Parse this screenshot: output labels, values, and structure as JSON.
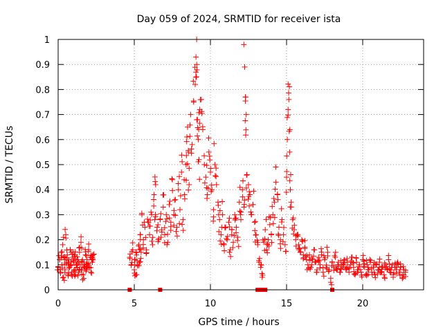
{
  "chart_data": {
    "type": "scatter",
    "title": "Day 059 of 2024, SRMTID for receiver ista",
    "xlabel": "GPS time / hours",
    "ylabel": "SRMTID / TECUs",
    "xlim": [
      0,
      24
    ],
    "ylim": [
      0,
      1
    ],
    "xticks": [
      0,
      5,
      10,
      15,
      20
    ],
    "yticks": [
      0,
      0.1,
      0.2,
      0.3,
      0.4,
      0.5,
      0.6,
      0.7,
      0.8,
      0.9,
      1
    ],
    "ytick_labels": [
      "0",
      "0.1",
      "0.2",
      "0.3",
      "0.4",
      "0.5",
      "0.6",
      "0.7",
      "0.8",
      "0.9",
      "1"
    ],
    "grid": true,
    "marker": "plus",
    "color": "#ff0000",
    "series": [
      {
        "name": "SRMTID",
        "points": [
          [
            0.0,
            0.09
          ],
          [
            0.1,
            0.12
          ],
          [
            0.15,
            0.07
          ],
          [
            0.2,
            0.15
          ],
          [
            0.25,
            0.1
          ],
          [
            0.3,
            0.18
          ],
          [
            0.35,
            0.05
          ],
          [
            0.4,
            0.13
          ],
          [
            0.45,
            0.08
          ],
          [
            0.5,
            0.22
          ],
          [
            0.55,
            0.11
          ],
          [
            0.6,
            0.14
          ],
          [
            0.65,
            0.06
          ],
          [
            0.7,
            0.12
          ],
          [
            0.75,
            0.09
          ],
          [
            0.8,
            0.16
          ],
          [
            0.85,
            0.1
          ],
          [
            0.9,
            0.07
          ],
          [
            0.95,
            0.13
          ],
          [
            1.0,
            0.11
          ],
          [
            1.05,
            0.08
          ],
          [
            1.1,
            0.14
          ],
          [
            1.15,
            0.06
          ],
          [
            1.2,
            0.1
          ],
          [
            1.25,
            0.09
          ],
          [
            1.3,
            0.12
          ],
          [
            1.35,
            0.07
          ],
          [
            1.4,
            0.15
          ],
          [
            1.45,
            0.1
          ],
          [
            1.5,
            0.19
          ],
          [
            1.55,
            0.08
          ],
          [
            1.6,
            0.12
          ],
          [
            1.65,
            0.06
          ],
          [
            1.7,
            0.11
          ],
          [
            1.75,
            0.09
          ],
          [
            1.8,
            0.14
          ],
          [
            1.85,
            0.08
          ],
          [
            1.9,
            0.12
          ],
          [
            1.95,
            0.1
          ],
          [
            2.0,
            0.16
          ],
          [
            2.05,
            0.09
          ],
          [
            2.1,
            0.13
          ],
          [
            2.15,
            0.07
          ],
          [
            2.2,
            0.12
          ],
          [
            2.25,
            0.11
          ],
          [
            2.3,
            0.14
          ],
          [
            4.7,
            0.13
          ],
          [
            4.8,
            0.1
          ],
          [
            4.9,
            0.16
          ],
          [
            5.0,
            0.08
          ],
          [
            5.05,
            0.12
          ],
          [
            5.1,
            0.06
          ],
          [
            5.15,
            0.14
          ],
          [
            5.2,
            0.1
          ],
          [
            5.3,
            0.18
          ],
          [
            5.35,
            0.11
          ],
          [
            5.4,
            0.22
          ],
          [
            5.45,
            0.15
          ],
          [
            5.5,
            0.3
          ],
          [
            5.6,
            0.2
          ],
          [
            5.7,
            0.25
          ],
          [
            5.8,
            0.16
          ],
          [
            5.9,
            0.27
          ],
          [
            6.0,
            0.22
          ],
          [
            6.1,
            0.31
          ],
          [
            6.2,
            0.18
          ],
          [
            6.3,
            0.38
          ],
          [
            6.35,
            0.28
          ],
          [
            6.4,
            0.42
          ],
          [
            6.5,
            0.25
          ],
          [
            6.6,
            0.2
          ],
          [
            6.7,
            0.28
          ],
          [
            6.8,
            0.24
          ],
          [
            6.9,
            0.33
          ],
          [
            7.0,
            0.22
          ],
          [
            7.1,
            0.3
          ],
          [
            7.2,
            0.19
          ],
          [
            7.3,
            0.34
          ],
          [
            7.4,
            0.27
          ],
          [
            7.5,
            0.44
          ],
          [
            7.6,
            0.3
          ],
          [
            7.7,
            0.36
          ],
          [
            7.8,
            0.25
          ],
          [
            7.9,
            0.4
          ],
          [
            8.0,
            0.32
          ],
          [
            8.1,
            0.47
          ],
          [
            8.2,
            0.28
          ],
          [
            8.3,
            0.38
          ],
          [
            8.4,
            0.5
          ],
          [
            8.5,
            0.65
          ],
          [
            8.55,
            0.55
          ],
          [
            8.6,
            0.42
          ],
          [
            8.7,
            0.7
          ],
          [
            8.8,
            0.58
          ],
          [
            8.9,
            0.75
          ],
          [
            9.0,
            0.82
          ],
          [
            9.05,
            0.93
          ],
          [
            9.1,
            0.9
          ],
          [
            9.15,
            0.68
          ],
          [
            9.2,
            0.6
          ],
          [
            9.25,
            0.52
          ],
          [
            9.3,
            0.72
          ],
          [
            9.4,
            0.76
          ],
          [
            9.5,
            0.64
          ],
          [
            9.6,
            0.5
          ],
          [
            9.7,
            0.45
          ],
          [
            9.8,
            0.38
          ],
          [
            9.9,
            0.55
          ],
          [
            10.0,
            0.47
          ],
          [
            10.1,
            0.4
          ],
          [
            10.2,
            0.32
          ],
          [
            10.3,
            0.5
          ],
          [
            10.4,
            0.42
          ],
          [
            10.5,
            0.35
          ],
          [
            10.6,
            0.28
          ],
          [
            10.7,
            0.22
          ],
          [
            10.8,
            0.3
          ],
          [
            10.9,
            0.18
          ],
          [
            11.0,
            0.25
          ],
          [
            11.1,
            0.2
          ],
          [
            11.2,
            0.27
          ],
          [
            11.3,
            0.16
          ],
          [
            11.4,
            0.22
          ],
          [
            11.5,
            0.19
          ],
          [
            11.6,
            0.3
          ],
          [
            11.7,
            0.25
          ],
          [
            11.8,
            0.21
          ],
          [
            11.9,
            0.35
          ],
          [
            12.0,
            0.28
          ],
          [
            12.1,
            0.4
          ],
          [
            12.2,
            0.33
          ],
          [
            12.25,
            0.89
          ],
          [
            12.3,
            0.77
          ],
          [
            12.35,
            0.7
          ],
          [
            12.4,
            0.46
          ],
          [
            12.5,
            0.42
          ],
          [
            12.6,
            0.38
          ],
          [
            12.7,
            0.3
          ],
          [
            12.8,
            0.34
          ],
          [
            12.9,
            0.27
          ],
          [
            13.0,
            0.22
          ],
          [
            13.1,
            0.18
          ],
          [
            13.2,
            0.11
          ],
          [
            13.3,
            0.09
          ],
          [
            13.4,
            0.05
          ],
          [
            13.5,
            0.19
          ],
          [
            13.6,
            0.24
          ],
          [
            13.7,
            0.16
          ],
          [
            13.8,
            0.2
          ],
          [
            13.9,
            0.26
          ],
          [
            14.0,
            0.22
          ],
          [
            14.1,
            0.3
          ],
          [
            14.2,
            0.35
          ],
          [
            14.3,
            0.43
          ],
          [
            14.4,
            0.38
          ],
          [
            14.5,
            0.25
          ],
          [
            14.6,
            0.2
          ],
          [
            14.7,
            0.28
          ],
          [
            14.8,
            0.22
          ],
          [
            14.9,
            0.18
          ],
          [
            15.0,
            0.45
          ],
          [
            15.05,
            0.6
          ],
          [
            15.1,
            0.72
          ],
          [
            15.15,
            0.76
          ],
          [
            15.2,
            0.55
          ],
          [
            15.25,
            0.4
          ],
          [
            15.3,
            0.35
          ],
          [
            15.4,
            0.28
          ],
          [
            15.5,
            0.24
          ],
          [
            15.6,
            0.2
          ],
          [
            15.7,
            0.22
          ],
          [
            15.8,
            0.18
          ],
          [
            15.9,
            0.15
          ],
          [
            16.0,
            0.2
          ],
          [
            16.1,
            0.14
          ],
          [
            16.2,
            0.17
          ],
          [
            16.3,
            0.12
          ],
          [
            16.4,
            0.1
          ],
          [
            16.5,
            0.14
          ],
          [
            16.6,
            0.09
          ],
          [
            16.7,
            0.12
          ],
          [
            16.8,
            0.16
          ],
          [
            16.9,
            0.11
          ],
          [
            17.0,
            0.08
          ],
          [
            17.1,
            0.13
          ],
          [
            17.2,
            0.1
          ],
          [
            17.3,
            0.14
          ],
          [
            17.4,
            0.07
          ],
          [
            17.5,
            0.12
          ],
          [
            17.6,
            0.09
          ],
          [
            17.7,
            0.15
          ],
          [
            17.8,
            0.08
          ],
          [
            17.9,
            0.03
          ],
          [
            18.0,
            0.11
          ],
          [
            18.1,
            0.09
          ],
          [
            18.2,
            0.13
          ],
          [
            18.3,
            0.08
          ],
          [
            18.4,
            0.11
          ],
          [
            18.5,
            0.07
          ],
          [
            18.6,
            0.1
          ],
          [
            18.7,
            0.09
          ],
          [
            18.8,
            0.12
          ],
          [
            18.9,
            0.08
          ],
          [
            19.0,
            0.11
          ],
          [
            19.1,
            0.07
          ],
          [
            19.2,
            0.1
          ],
          [
            19.3,
            0.13
          ],
          [
            19.4,
            0.09
          ],
          [
            19.5,
            0.06
          ],
          [
            19.6,
            0.11
          ],
          [
            19.7,
            0.08
          ],
          [
            19.8,
            0.1
          ],
          [
            19.9,
            0.07
          ],
          [
            20.0,
            0.12
          ],
          [
            20.1,
            0.09
          ],
          [
            20.2,
            0.06
          ],
          [
            20.3,
            0.1
          ],
          [
            20.4,
            0.08
          ],
          [
            20.5,
            0.11
          ],
          [
            20.6,
            0.07
          ],
          [
            20.7,
            0.09
          ],
          [
            20.8,
            0.06
          ],
          [
            20.9,
            0.1
          ],
          [
            21.0,
            0.08
          ],
          [
            21.1,
            0.11
          ],
          [
            21.2,
            0.07
          ],
          [
            21.3,
            0.09
          ],
          [
            21.4,
            0.06
          ],
          [
            21.5,
            0.1
          ],
          [
            21.6,
            0.08
          ],
          [
            21.7,
            0.12
          ],
          [
            21.8,
            0.07
          ],
          [
            21.9,
            0.09
          ],
          [
            22.0,
            0.06
          ],
          [
            22.1,
            0.1
          ],
          [
            22.2,
            0.08
          ],
          [
            22.3,
            0.11
          ],
          [
            22.4,
            0.07
          ],
          [
            22.5,
            0.09
          ],
          [
            22.6,
            0.06
          ],
          [
            22.7,
            0.08
          ],
          [
            22.8,
            0.07
          ]
        ],
        "zero_points": [
          [
            4.7,
            0.0
          ],
          [
            6.7,
            0.0
          ],
          [
            13.1,
            0.0
          ],
          [
            13.35,
            0.0
          ],
          [
            13.6,
            0.0
          ],
          [
            18.0,
            0.0
          ]
        ]
      }
    ]
  }
}
